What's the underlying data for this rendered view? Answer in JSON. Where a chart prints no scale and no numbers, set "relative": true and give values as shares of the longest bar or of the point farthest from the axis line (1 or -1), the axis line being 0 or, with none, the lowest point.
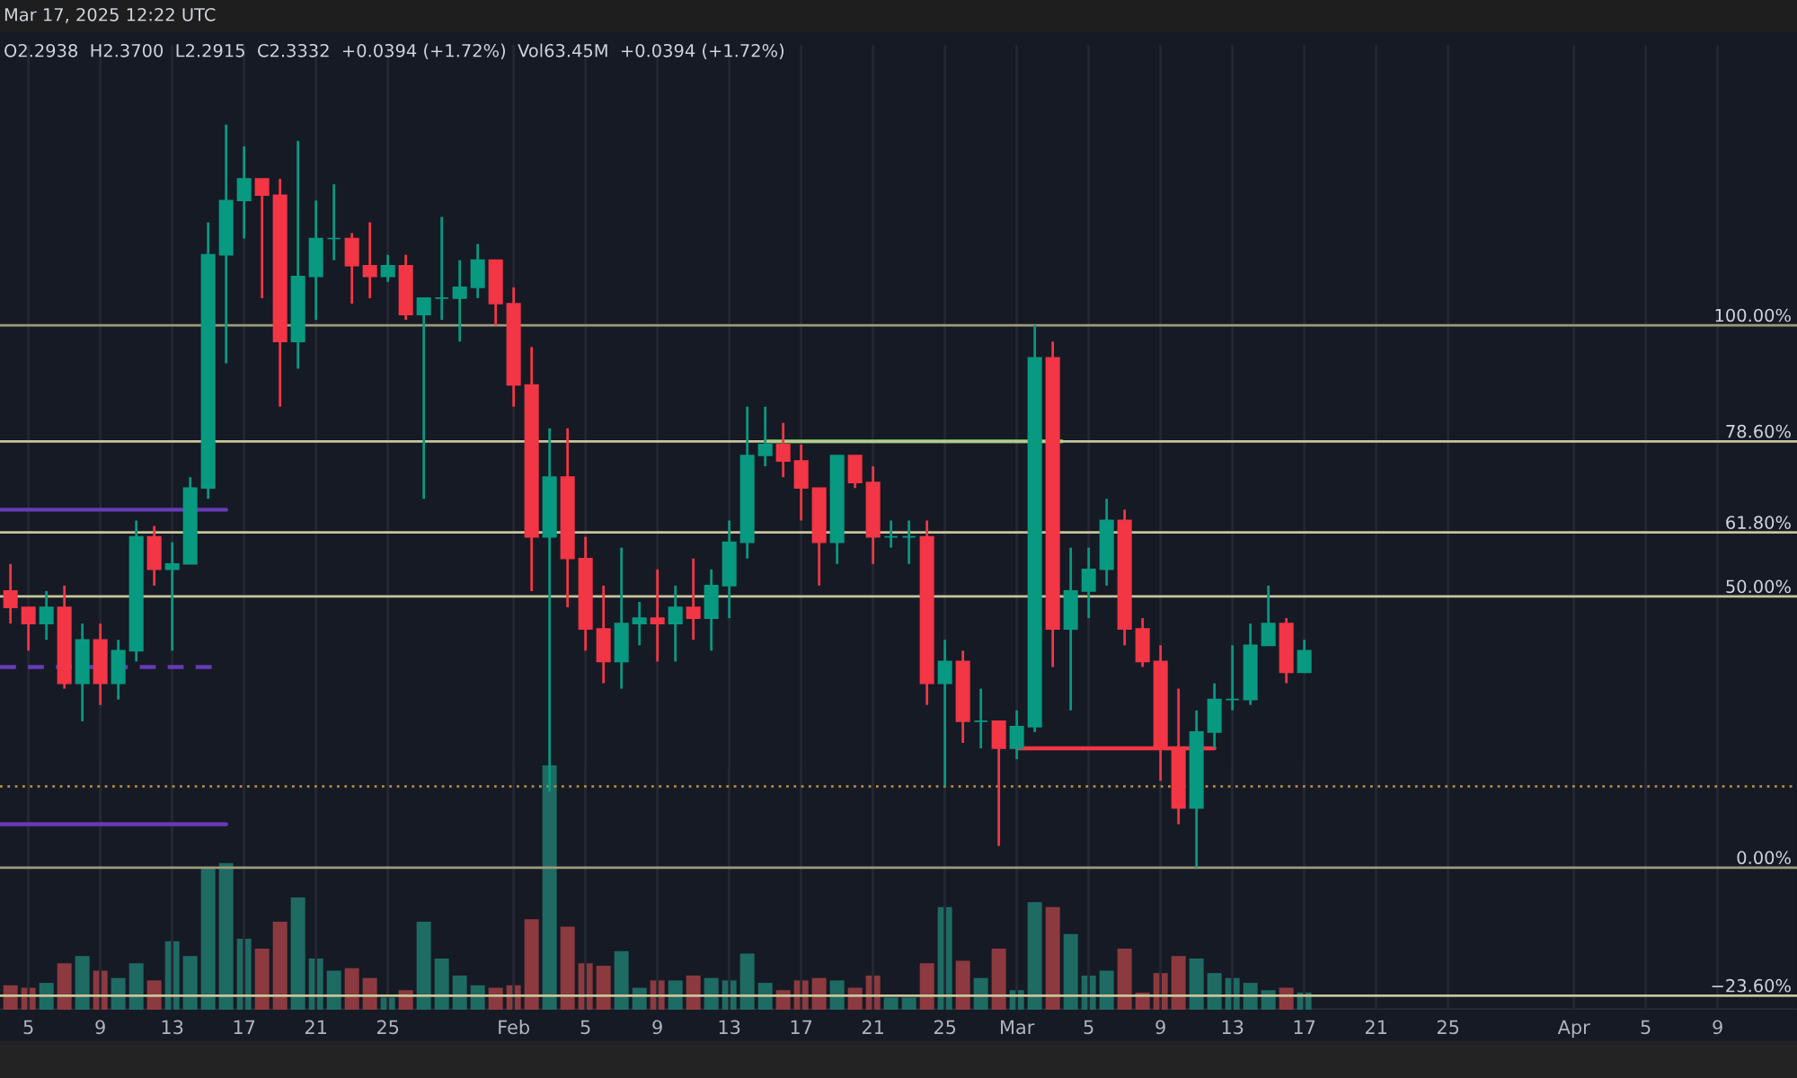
{
  "chart_data": [
    {
      "type": "candlestick",
      "grid": "x",
      "tick_labels": false,
      "annotations": [
        "Mar 17, 2025 12:22 UTC",
        "O2.2938  H2.3700  L2.2915  C2.3332  +0.0394 (+1.72%)  Vol63.45M  +0.0394 (+1.72%)"
      ],
      "xlim": [
        "2025-01-03T10:00",
        "2025-04-13T10:00"
      ],
      "ylim": [
        -26.2,
        151.7
      ],
      "xticks": [
        "2025-01-05",
        "2025-01-09",
        "2025-01-13",
        "2025-01-17",
        "2025-01-21",
        "2025-01-25",
        "2025-02-01",
        "2025-02-05",
        "2025-02-09",
        "2025-02-13",
        "2025-02-17",
        "2025-02-21",
        "2025-02-25",
        "2025-03-01",
        "2025-03-05",
        "2025-03-09",
        "2025-03-13",
        "2025-03-17",
        "2025-03-21",
        "2025-03-25",
        "2025-04-01",
        "2025-04-05",
        "2025-04-09"
      ],
      "x": [
        "2025-01-04",
        "2025-01-05",
        "2025-01-06",
        "2025-01-07",
        "2025-01-08",
        "2025-01-09",
        "2025-01-10",
        "2025-01-11",
        "2025-01-12",
        "2025-01-13",
        "2025-01-14",
        "2025-01-15",
        "2025-01-16",
        "2025-01-17",
        "2025-01-18",
        "2025-01-19",
        "2025-01-20",
        "2025-01-21",
        "2025-01-22",
        "2025-01-23",
        "2025-01-24",
        "2025-01-25",
        "2025-01-26",
        "2025-01-27",
        "2025-01-28",
        "2025-01-29",
        "2025-01-30",
        "2025-01-31",
        "2025-02-01",
        "2025-02-02",
        "2025-02-03",
        "2025-02-04",
        "2025-02-05",
        "2025-02-06",
        "2025-02-07",
        "2025-02-08",
        "2025-02-09",
        "2025-02-10",
        "2025-02-11",
        "2025-02-12",
        "2025-02-13",
        "2025-02-14",
        "2025-02-15",
        "2025-02-16",
        "2025-02-17",
        "2025-02-18",
        "2025-02-19",
        "2025-02-20",
        "2025-02-21",
        "2025-02-22",
        "2025-02-23",
        "2025-02-24",
        "2025-02-25",
        "2025-02-26",
        "2025-02-27",
        "2025-02-28",
        "2025-03-01",
        "2025-03-02",
        "2025-03-03",
        "2025-03-04",
        "2025-03-05",
        "2025-03-06",
        "2025-03-07",
        "2025-03-08",
        "2025-03-09",
        "2025-03-10",
        "2025-03-11",
        "2025-03-12",
        "2025-03-13",
        "2025-03-14",
        "2025-03-15",
        "2025-03-16",
        "2025-03-17"
      ],
      "ohlc": [
        [
          51,
          56,
          45,
          48
        ],
        [
          48,
          48,
          40,
          45
        ],
        [
          45,
          51,
          42,
          48
        ],
        [
          48,
          52,
          33,
          34
        ],
        [
          34,
          45,
          27,
          42
        ],
        [
          42,
          45,
          30,
          34
        ],
        [
          34,
          42,
          31,
          40
        ],
        [
          40,
          64,
          38,
          61
        ],
        [
          61,
          63,
          52,
          55
        ],
        [
          55,
          60,
          40,
          56
        ],
        [
          56,
          72,
          56,
          70
        ],
        [
          70,
          119,
          68,
          113
        ],
        [
          113,
          137,
          93,
          123
        ],
        [
          123,
          133,
          116,
          127
        ],
        [
          127,
          127,
          105,
          124
        ],
        [
          124,
          127,
          85,
          97
        ],
        [
          97,
          134,
          92,
          109
        ],
        [
          109,
          123,
          101,
          116
        ],
        [
          116,
          126,
          112,
          116
        ],
        [
          116,
          117,
          104,
          111
        ],
        [
          111,
          119,
          105,
          109
        ],
        [
          109,
          113,
          108,
          111
        ],
        [
          111,
          113,
          101,
          102
        ],
        [
          102,
          105,
          68,
          105
        ],
        [
          105,
          120,
          101,
          105
        ],
        [
          105,
          112,
          97,
          107
        ],
        [
          107,
          115,
          105,
          112
        ],
        [
          112,
          112,
          100,
          104
        ],
        [
          104,
          107,
          85,
          89
        ],
        [
          89,
          96,
          51,
          61
        ],
        [
          61,
          81,
          14,
          72
        ],
        [
          72,
          81,
          48,
          57
        ],
        [
          57,
          61,
          40,
          44
        ],
        [
          44,
          52,
          34,
          38
        ],
        [
          38,
          59,
          33,
          45
        ],
        [
          45,
          49,
          41,
          46
        ],
        [
          46,
          55,
          38,
          45
        ],
        [
          45,
          52,
          38,
          48
        ],
        [
          48,
          57,
          42,
          46
        ],
        [
          46,
          55,
          40,
          52
        ],
        [
          52,
          64,
          46,
          60
        ],
        [
          60,
          85,
          57,
          76
        ],
        [
          76,
          85,
          74,
          78
        ],
        [
          78,
          82,
          72,
          75
        ],
        [
          75,
          78,
          64,
          70
        ],
        [
          70,
          70,
          52,
          60
        ],
        [
          60,
          76,
          56,
          76
        ],
        [
          76,
          76,
          70,
          71
        ],
        [
          71,
          74,
          56,
          61
        ],
        [
          61,
          64,
          59,
          61
        ],
        [
          61,
          64,
          56,
          61
        ],
        [
          61,
          64,
          30,
          34
        ],
        [
          34,
          42,
          15,
          38
        ],
        [
          38,
          40,
          23,
          27
        ],
        [
          27,
          33,
          22,
          27
        ],
        [
          27,
          27,
          4,
          22
        ],
        [
          22,
          29,
          20,
          26
        ],
        [
          26,
          100,
          25,
          94
        ],
        [
          94,
          97,
          37,
          44
        ],
        [
          44,
          59,
          29,
          51
        ],
        [
          51,
          59,
          46,
          55
        ],
        [
          55,
          68,
          52,
          64
        ],
        [
          64,
          66,
          41,
          44
        ],
        [
          44,
          46,
          37,
          38
        ],
        [
          38,
          41,
          16,
          22
        ],
        [
          22,
          33,
          8,
          11
        ],
        [
          11,
          29,
          0,
          25
        ],
        [
          25,
          34,
          22,
          31
        ],
        [
          31,
          41,
          29,
          31
        ],
        [
          31,
          45,
          30,
          41
        ],
        [
          41,
          52,
          41,
          45
        ],
        [
          45,
          46,
          34,
          36
        ],
        [
          36,
          42,
          36,
          40
        ]
      ],
      "colors": [
        "#f23645",
        "#f23645",
        "#089981",
        "#f23645",
        "#089981",
        "#f23645",
        "#089981",
        "#089981",
        "#f23645",
        "#089981",
        "#089981",
        "#089981",
        "#089981",
        "#089981",
        "#f23645",
        "#f23645",
        "#089981",
        "#089981",
        "#089981",
        "#f23645",
        "#f23645",
        "#089981",
        "#f23645",
        "#089981",
        "#089981",
        "#089981",
        "#089981",
        "#f23645",
        "#f23645",
        "#f23645",
        "#089981",
        "#f23645",
        "#f23645",
        "#f23645",
        "#089981",
        "#089981",
        "#f23645",
        "#089981",
        "#f23645",
        "#089981",
        "#089981",
        "#089981",
        "#089981",
        "#f23645",
        "#f23645",
        "#f23645",
        "#089981",
        "#f23645",
        "#f23645",
        "#089981",
        "#089981",
        "#f23645",
        "#089981",
        "#f23645",
        "#089981",
        "#f23645",
        "#089981",
        "#089981",
        "#f23645",
        "#089981",
        "#089981",
        "#089981",
        "#f23645",
        "#f23645",
        "#f23645",
        "#f23645",
        "#089981",
        "#089981",
        "#089981",
        "#089981",
        "#089981",
        "#f23645",
        "#089981"
      ],
      "series": [
        {
          "type": "line",
          "x": [
            "2025-01-03T10:00",
            "2025-01-16"
          ],
          "values": [
            66,
            66
          ],
          "color": "#673ab7",
          "line_style": "solid"
        },
        {
          "type": "line",
          "x": [
            "2025-01-03T10:00",
            "2025-01-15T10:00"
          ],
          "values": [
            37,
            37
          ],
          "color": "#673ab7",
          "line_style": "dashed"
        },
        {
          "type": "line",
          "x": [
            "2025-01-03T10:00",
            "2025-01-16"
          ],
          "values": [
            8,
            8
          ],
          "color": "#673ab7",
          "line_style": "solid"
        },
        {
          "type": "line",
          "x": [
            "2025-02-15",
            "2025-03-03T12:00"
          ],
          "values": [
            78.6,
            78.6
          ],
          "color": "#4caf50",
          "line_style": "solid"
        },
        {
          "type": "line",
          "x": [
            "2025-03-01",
            "2025-03-12"
          ],
          "values": [
            22,
            22
          ],
          "color": "#f23645",
          "line_style": "solid"
        }
      ],
      "ref_lines": [
        {
          "axis": "y",
          "value": 100,
          "label": "100.00%",
          "color": "#9d9a7c"
        },
        {
          "axis": "y",
          "value": 78.6,
          "label": "78.60%",
          "color": "#c8c49a"
        },
        {
          "axis": "y",
          "value": 61.8,
          "label": "61.80%",
          "color": "#c8c49a"
        },
        {
          "axis": "y",
          "value": 50,
          "label": "50.00%",
          "color": "#c8c49a"
        },
        {
          "axis": "y",
          "value": 0,
          "label": "0.00%",
          "color": "#9d9a7c"
        },
        {
          "axis": "y",
          "value": -23.6,
          "label": "−23.60%",
          "color": "#c8c49a"
        },
        {
          "axis": "y",
          "value": 15,
          "color": "#b5893a",
          "line_style": "dotted"
        }
      ]
    },
    {
      "type": "bar",
      "relative": true,
      "grid": "x",
      "tick_labels": "x",
      "xlim": [
        "2025-01-03T10:00",
        "2025-04-13T10:00"
      ],
      "xticks": [
        {
          "value": "2025-01-05",
          "label": "5"
        },
        {
          "value": "2025-01-09",
          "label": "9"
        },
        {
          "value": "2025-01-13",
          "label": "13"
        },
        {
          "value": "2025-01-17",
          "label": "17"
        },
        {
          "value": "2025-01-21",
          "label": "21"
        },
        {
          "value": "2025-01-25",
          "label": "25"
        },
        {
          "value": "2025-02-01",
          "label": "Feb"
        },
        {
          "value": "2025-02-05",
          "label": "5"
        },
        {
          "value": "2025-02-09",
          "label": "9"
        },
        {
          "value": "2025-02-13",
          "label": "13"
        },
        {
          "value": "2025-02-17",
          "label": "17"
        },
        {
          "value": "2025-02-21",
          "label": "21"
        },
        {
          "value": "2025-02-25",
          "label": "25"
        },
        {
          "value": "2025-03-01",
          "label": "Mar"
        },
        {
          "value": "2025-03-05",
          "label": "5"
        },
        {
          "value": "2025-03-09",
          "label": "9"
        },
        {
          "value": "2025-03-13",
          "label": "13"
        },
        {
          "value": "2025-03-17",
          "label": "17"
        },
        {
          "value": "2025-03-21",
          "label": "21"
        },
        {
          "value": "2025-03-25",
          "label": "25"
        },
        {
          "value": "2025-04-01",
          "label": "Apr"
        },
        {
          "value": "2025-04-05",
          "label": "5"
        },
        {
          "value": "2025-04-09",
          "label": "9"
        }
      ],
      "x": [
        "2025-01-04",
        "2025-01-05",
        "2025-01-06",
        "2025-01-07",
        "2025-01-08",
        "2025-01-09",
        "2025-01-10",
        "2025-01-11",
        "2025-01-12",
        "2025-01-13",
        "2025-01-14",
        "2025-01-15",
        "2025-01-16",
        "2025-01-17",
        "2025-01-18",
        "2025-01-19",
        "2025-01-20",
        "2025-01-21",
        "2025-01-22",
        "2025-01-23",
        "2025-01-24",
        "2025-01-25",
        "2025-01-26",
        "2025-01-27",
        "2025-01-28",
        "2025-01-29",
        "2025-01-30",
        "2025-01-31",
        "2025-02-01",
        "2025-02-02",
        "2025-02-03",
        "2025-02-04",
        "2025-02-05",
        "2025-02-06",
        "2025-02-07",
        "2025-02-08",
        "2025-02-09",
        "2025-02-10",
        "2025-02-11",
        "2025-02-12",
        "2025-02-13",
        "2025-02-14",
        "2025-02-15",
        "2025-02-16",
        "2025-02-17",
        "2025-02-18",
        "2025-02-19",
        "2025-02-20",
        "2025-02-21",
        "2025-02-22",
        "2025-02-23",
        "2025-02-24",
        "2025-02-25",
        "2025-02-26",
        "2025-02-27",
        "2025-02-28",
        "2025-03-01",
        "2025-03-02",
        "2025-03-03",
        "2025-03-04",
        "2025-03-05",
        "2025-03-06",
        "2025-03-07",
        "2025-03-08",
        "2025-03-09",
        "2025-03-10",
        "2025-03-11",
        "2025-03-12",
        "2025-03-13",
        "2025-03-14",
        "2025-03-15",
        "2025-03-16",
        "2025-03-17"
      ],
      "values": [
        0.1,
        0.09,
        0.11,
        0.19,
        0.22,
        0.16,
        0.13,
        0.19,
        0.12,
        0.28,
        0.22,
        0.58,
        0.6,
        0.29,
        0.25,
        0.36,
        0.46,
        0.21,
        0.16,
        0.17,
        0.13,
        0.05,
        0.08,
        0.36,
        0.21,
        0.14,
        0.1,
        0.09,
        0.1,
        0.37,
        1.0,
        0.34,
        0.19,
        0.18,
        0.24,
        0.09,
        0.12,
        0.12,
        0.14,
        0.13,
        0.12,
        0.23,
        0.11,
        0.08,
        0.12,
        0.13,
        0.12,
        0.09,
        0.14,
        0.05,
        0.05,
        0.19,
        0.42,
        0.2,
        0.13,
        0.25,
        0.08,
        0.44,
        0.42,
        0.31,
        0.14,
        0.16,
        0.25,
        0.07,
        0.15,
        0.22,
        0.21,
        0.15,
        0.13,
        0.11,
        0.08,
        0.09,
        0.07
      ],
      "colors": [
        "#8c3a3f",
        "#8c3a3f",
        "#1e6b63",
        "#8c3a3f",
        "#1e6b63",
        "#8c3a3f",
        "#1e6b63",
        "#1e6b63",
        "#8c3a3f",
        "#1e6b63",
        "#1e6b63",
        "#1e6b63",
        "#1e6b63",
        "#1e6b63",
        "#8c3a3f",
        "#8c3a3f",
        "#1e6b63",
        "#1e6b63",
        "#1e6b63",
        "#8c3a3f",
        "#8c3a3f",
        "#1e6b63",
        "#8c3a3f",
        "#1e6b63",
        "#1e6b63",
        "#1e6b63",
        "#1e6b63",
        "#8c3a3f",
        "#8c3a3f",
        "#8c3a3f",
        "#1e6b63",
        "#8c3a3f",
        "#8c3a3f",
        "#8c3a3f",
        "#1e6b63",
        "#1e6b63",
        "#8c3a3f",
        "#1e6b63",
        "#8c3a3f",
        "#1e6b63",
        "#1e6b63",
        "#1e6b63",
        "#1e6b63",
        "#8c3a3f",
        "#8c3a3f",
        "#8c3a3f",
        "#1e6b63",
        "#8c3a3f",
        "#8c3a3f",
        "#1e6b63",
        "#1e6b63",
        "#8c3a3f",
        "#1e6b63",
        "#8c3a3f",
        "#1e6b63",
        "#8c3a3f",
        "#1e6b63",
        "#1e6b63",
        "#8c3a3f",
        "#1e6b63",
        "#1e6b63",
        "#1e6b63",
        "#8c3a3f",
        "#8c3a3f",
        "#8c3a3f",
        "#8c3a3f",
        "#1e6b63",
        "#1e6b63",
        "#1e6b63",
        "#1e6b63",
        "#1e6b63",
        "#8c3a3f",
        "#1e6b63"
      ]
    }
  ]
}
